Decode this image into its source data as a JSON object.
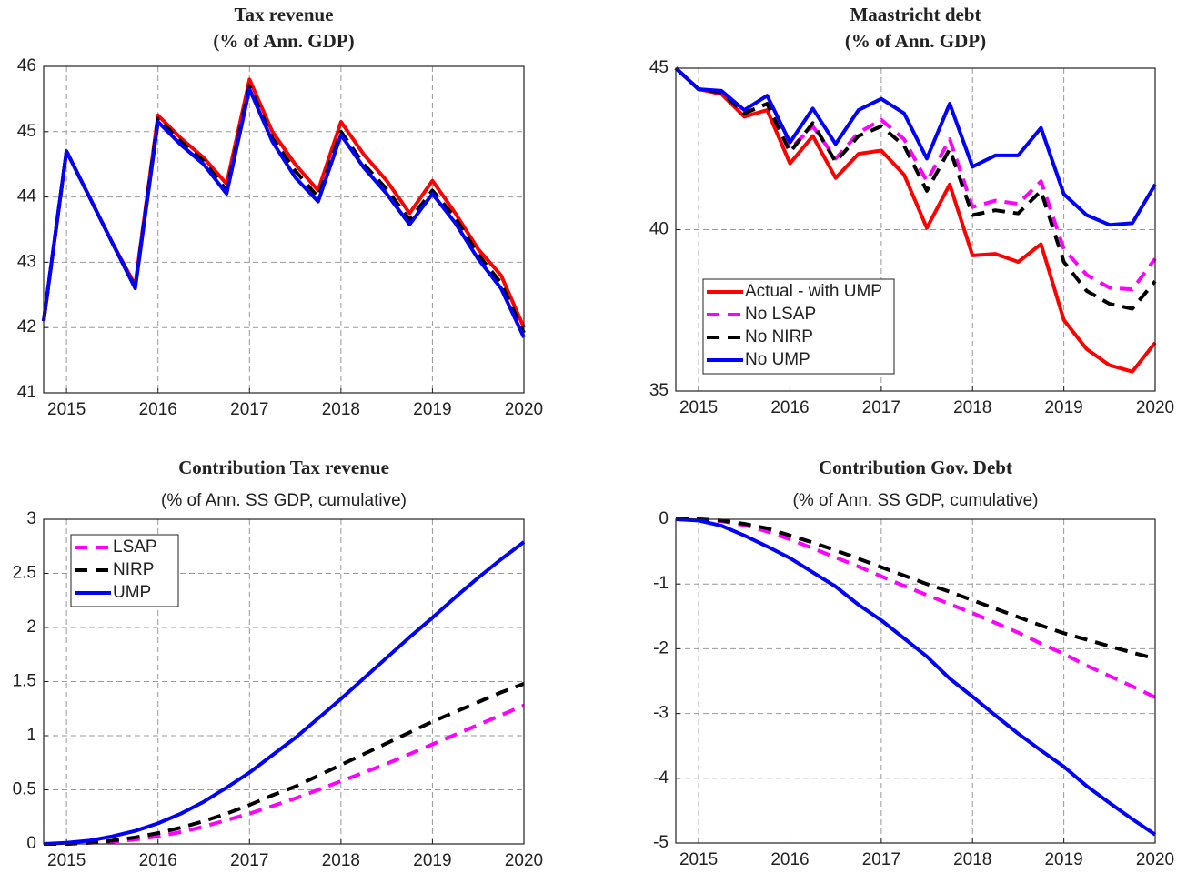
{
  "chart_data": [
    {
      "type": "line",
      "title": "Tax revenue",
      "subtitle": "(% of Ann. GDP)",
      "x": [
        2014.75,
        2015,
        2015.25,
        2015.5,
        2015.75,
        2016,
        2016.25,
        2016.5,
        2016.75,
        2017,
        2017.25,
        2017.5,
        2017.75,
        2018,
        2018.25,
        2018.5,
        2018.75,
        2019,
        2019.25,
        2019.5,
        2019.75,
        2020
      ],
      "xlim": [
        2014.75,
        2020
      ],
      "xticks": [
        2015,
        2016,
        2017,
        2018,
        2019,
        2020
      ],
      "ylim": [
        41,
        46
      ],
      "yticks": [
        41,
        42,
        43,
        44,
        45,
        46
      ],
      "grid": true,
      "series": [
        {
          "color": "#ff0000",
          "line_style": "solid",
          "values": [
            42.1,
            44.7,
            44.0,
            43.3,
            42.65,
            45.25,
            44.9,
            44.6,
            44.2,
            45.8,
            45.0,
            44.5,
            44.1,
            45.15,
            44.65,
            44.25,
            43.75,
            44.25,
            43.75,
            43.2,
            42.8,
            42.0
          ]
        },
        {
          "color": "#000000",
          "line_style": "dashed",
          "values": [
            42.1,
            44.7,
            44.0,
            43.3,
            42.62,
            45.2,
            44.85,
            44.55,
            44.1,
            45.7,
            44.9,
            44.4,
            44.0,
            45.0,
            44.5,
            44.12,
            43.65,
            44.1,
            43.68,
            43.12,
            42.68,
            41.92
          ]
        },
        {
          "color": "#0000ff",
          "line_style": "solid",
          "values": [
            42.1,
            44.7,
            44.0,
            43.3,
            42.6,
            45.15,
            44.8,
            44.5,
            44.05,
            45.65,
            44.85,
            44.3,
            43.93,
            44.95,
            44.45,
            44.05,
            43.58,
            44.05,
            43.6,
            43.05,
            42.6,
            41.85
          ]
        }
      ]
    },
    {
      "type": "line",
      "title": "Maastricht debt",
      "subtitle": "(% of Ann. GDP)",
      "x": [
        2014.75,
        2015,
        2015.25,
        2015.5,
        2015.75,
        2016,
        2016.25,
        2016.5,
        2016.75,
        2017,
        2017.25,
        2017.5,
        2017.75,
        2018,
        2018.25,
        2018.5,
        2018.75,
        2019,
        2019.25,
        2019.5,
        2019.75,
        2020
      ],
      "xlim": [
        2014.75,
        2020
      ],
      "xticks": [
        2015,
        2016,
        2017,
        2018,
        2019,
        2020
      ],
      "ylim": [
        35,
        45
      ],
      "yticks": [
        35,
        40,
        45
      ],
      "grid": true,
      "legend": "lower left",
      "series": [
        {
          "name": "Actual - with UMP",
          "color": "#ff0000",
          "line_style": "solid",
          "values": [
            45,
            44.35,
            44.2,
            43.5,
            43.7,
            42.05,
            42.9,
            41.6,
            42.35,
            42.45,
            41.7,
            40.05,
            41.4,
            39.2,
            39.25,
            39.0,
            39.55,
            37.2,
            36.3,
            35.8,
            35.6,
            36.5
          ]
        },
        {
          "name": "No LSAP",
          "color": "#ff00ff",
          "line_style": "dashed",
          "values": [
            45,
            44.35,
            44.25,
            43.6,
            43.9,
            42.5,
            43.2,
            42.2,
            43.0,
            43.4,
            42.8,
            41.5,
            42.8,
            40.7,
            40.9,
            40.8,
            41.5,
            39.4,
            38.6,
            38.2,
            38.15,
            39.1
          ]
        },
        {
          "name": "No NIRP",
          "color": "#000000",
          "line_style": "dashed",
          "values": [
            45,
            44.35,
            44.25,
            43.6,
            43.9,
            42.4,
            43.3,
            42.1,
            42.9,
            43.2,
            42.6,
            41.2,
            42.5,
            40.45,
            40.6,
            40.5,
            41.2,
            39.0,
            38.1,
            37.7,
            37.55,
            38.4
          ]
        },
        {
          "name": "No UMP",
          "color": "#0000ff",
          "line_style": "solid",
          "values": [
            45,
            44.35,
            44.3,
            43.7,
            44.15,
            42.7,
            43.75,
            42.65,
            43.7,
            44.05,
            43.6,
            42.2,
            43.9,
            41.95,
            42.3,
            42.3,
            43.15,
            41.1,
            40.45,
            40.15,
            40.2,
            41.4
          ]
        }
      ]
    },
    {
      "type": "line",
      "title": "Contribution Tax revenue",
      "subtitle": "(% of Ann. SS GDP, cumulative)",
      "x": [
        2014.75,
        2015,
        2015.25,
        2015.5,
        2015.75,
        2016,
        2016.25,
        2016.5,
        2016.75,
        2017,
        2017.25,
        2017.5,
        2017.75,
        2018,
        2018.25,
        2018.5,
        2018.75,
        2019,
        2019.25,
        2019.5,
        2019.75,
        2020
      ],
      "xlim": [
        2014.75,
        2020
      ],
      "xticks": [
        2015,
        2016,
        2017,
        2018,
        2019,
        2020
      ],
      "ylim": [
        0,
        3
      ],
      "yticks": [
        0,
        0.5,
        1,
        1.5,
        2,
        2.5,
        3
      ],
      "grid": true,
      "legend": "upper left",
      "series": [
        {
          "name": "LSAP",
          "color": "#ff00ff",
          "line_style": "dashed",
          "values": [
            0,
            0,
            0.01,
            0.02,
            0.04,
            0.07,
            0.11,
            0.16,
            0.22,
            0.28,
            0.35,
            0.42,
            0.5,
            0.58,
            0.66,
            0.74,
            0.83,
            0.92,
            1.01,
            1.1,
            1.19,
            1.28
          ]
        },
        {
          "name": "NIRP",
          "color": "#000000",
          "line_style": "dashed",
          "values": [
            0,
            0,
            0.01,
            0.03,
            0.06,
            0.1,
            0.15,
            0.21,
            0.28,
            0.36,
            0.45,
            0.53,
            0.63,
            0.73,
            0.83,
            0.93,
            1.03,
            1.13,
            1.22,
            1.31,
            1.4,
            1.48
          ]
        },
        {
          "name": "UMP",
          "color": "#0000ff",
          "line_style": "solid",
          "values": [
            0,
            0.01,
            0.03,
            0.07,
            0.12,
            0.19,
            0.28,
            0.39,
            0.52,
            0.66,
            0.82,
            0.98,
            1.16,
            1.34,
            1.53,
            1.72,
            1.91,
            2.09,
            2.28,
            2.46,
            2.63,
            2.79
          ]
        }
      ]
    },
    {
      "type": "line",
      "title": "Contribution Gov. Debt",
      "subtitle": "(% of Ann. SS GDP, cumulative)",
      "x": [
        2014.75,
        2015,
        2015.25,
        2015.5,
        2015.75,
        2016,
        2016.25,
        2016.5,
        2016.75,
        2017,
        2017.25,
        2017.5,
        2017.75,
        2018,
        2018.25,
        2018.5,
        2018.75,
        2019,
        2019.25,
        2019.5,
        2019.75,
        2020
      ],
      "xlim": [
        2014.75,
        2020
      ],
      "xticks": [
        2015,
        2016,
        2017,
        2018,
        2019,
        2020
      ],
      "ylim": [
        -5,
        0
      ],
      "yticks": [
        -5,
        -4,
        -3,
        -2,
        -1,
        0
      ],
      "grid": true,
      "series": [
        {
          "color": "#ff00ff",
          "line_style": "dashed",
          "values": [
            0,
            0,
            -0.03,
            -0.09,
            -0.19,
            -0.31,
            -0.45,
            -0.59,
            -0.73,
            -0.88,
            -1.03,
            -1.17,
            -1.31,
            -1.45,
            -1.6,
            -1.75,
            -1.92,
            -2.08,
            -2.26,
            -2.42,
            -2.58,
            -2.75
          ]
        },
        {
          "color": "#000000",
          "line_style": "dashed",
          "values": [
            0,
            0,
            -0.02,
            -0.07,
            -0.14,
            -0.25,
            -0.36,
            -0.48,
            -0.61,
            -0.74,
            -0.87,
            -1.0,
            -1.12,
            -1.25,
            -1.38,
            -1.51,
            -1.64,
            -1.76,
            -1.86,
            -1.96,
            -2.06,
            -2.15
          ]
        },
        {
          "color": "#0000ff",
          "line_style": "solid",
          "values": [
            0,
            -0.02,
            -0.1,
            -0.25,
            -0.42,
            -0.6,
            -0.82,
            -1.04,
            -1.32,
            -1.56,
            -1.84,
            -2.12,
            -2.46,
            -2.74,
            -3.03,
            -3.31,
            -3.57,
            -3.82,
            -4.12,
            -4.38,
            -4.63,
            -4.87
          ]
        }
      ]
    }
  ]
}
